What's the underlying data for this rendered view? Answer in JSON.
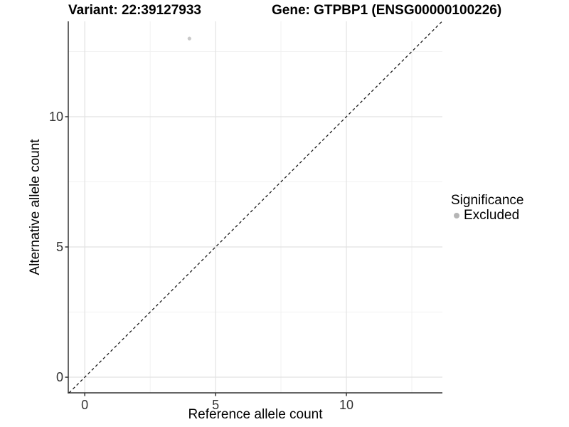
{
  "chart_data": {
    "type": "scatter",
    "title_left": "Variant: 22:39127933",
    "title_right": "Gene: GTPBP1 (ENSG00000100226)",
    "xlabel": "Reference allele count",
    "ylabel": "Alternative allele count",
    "xlim": [
      -0.63,
      13.67
    ],
    "ylim": [
      -0.6,
      13.66
    ],
    "x_major_ticks": [
      0,
      5,
      10
    ],
    "y_major_ticks": [
      0,
      5,
      10
    ],
    "x_minor_ticks": [
      2.5,
      7.5,
      12.5
    ],
    "y_minor_ticks": [
      2.5,
      7.5,
      12.5
    ],
    "grid": "major+minor on white background",
    "legend_position": "right",
    "points": [
      {
        "x": 4,
        "y": 13,
        "series": "Excluded",
        "color": "#c9c9c9"
      }
    ],
    "reference_line": {
      "type": "identity",
      "slope": 1,
      "intercept": 0,
      "linestyle": "dashed",
      "color": "#1a1a1a"
    }
  },
  "legend": {
    "title": "Significance",
    "items": [
      {
        "label": "Excluded",
        "marker_color": "#b5b5b5"
      }
    ]
  },
  "style": {
    "background": "#ffffff",
    "grid_major_color": "#e2e2e2",
    "grid_minor_color": "#f1f1f1",
    "axis_line_color": "#333333",
    "tick_mark_color": "#333333",
    "tick_label_color": "#333333",
    "title_color": "#000000"
  }
}
